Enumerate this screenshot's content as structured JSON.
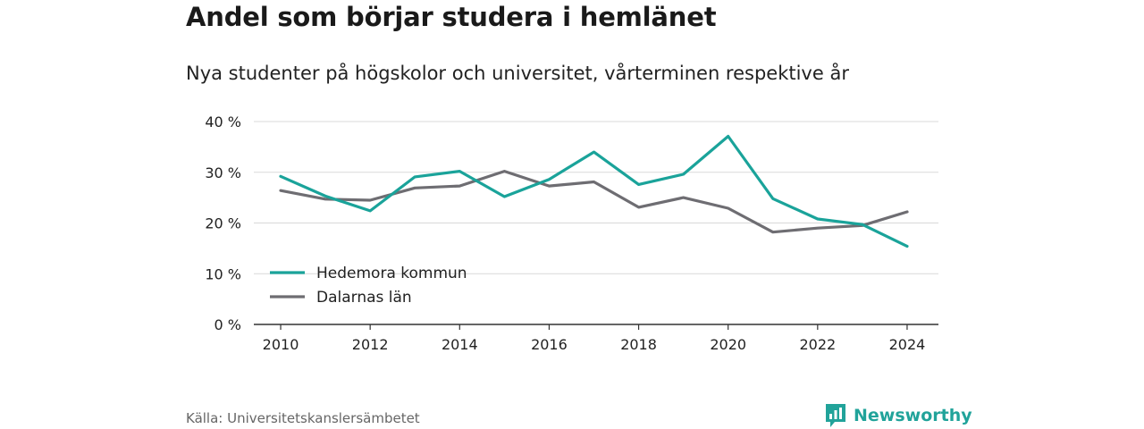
{
  "title": "Andel som börjar studera i hemlänet",
  "subtitle": "Nya studenter på högskolor och universitet, vårterminen respektive år",
  "source": "Källa: Universitetskanslersämbetet",
  "brand": "Newsworthy",
  "colors": {
    "accent": "#1aa39a",
    "secondary": "#6e6d72",
    "grid": "#d9d9d9",
    "axis": "#333333"
  },
  "chart_data": {
    "type": "line",
    "x": [
      2010,
      2011,
      2012,
      2013,
      2014,
      2015,
      2016,
      2017,
      2018,
      2019,
      2020,
      2021,
      2022,
      2023,
      2024
    ],
    "xticks": [
      2010,
      2012,
      2014,
      2016,
      2018,
      2020,
      2022,
      2024
    ],
    "xtick_labels": [
      "2010",
      "2012",
      "2014",
      "2016",
      "2018",
      "2020",
      "2022",
      "2024"
    ],
    "yticks": [
      0,
      10,
      20,
      30,
      40
    ],
    "ytick_labels": [
      "0 %",
      "10 %",
      "20 %",
      "30 %",
      "40 %"
    ],
    "ylim": [
      0,
      40
    ],
    "xlim": [
      2009.4,
      2024.7
    ],
    "grid": true,
    "legend_position": "bottom-left",
    "series": [
      {
        "name": "Hedemora kommun",
        "color": "#1aa39a",
        "values": [
          29.2,
          25.3,
          22.4,
          29.1,
          30.2,
          25.2,
          28.6,
          34.0,
          27.6,
          29.6,
          37.1,
          24.8,
          20.8,
          19.7,
          15.4
        ]
      },
      {
        "name": "Dalarnas län",
        "color": "#6e6d72",
        "values": [
          26.4,
          24.7,
          24.5,
          26.9,
          27.3,
          30.2,
          27.3,
          28.1,
          23.1,
          25.0,
          22.9,
          18.2,
          19.0,
          19.5,
          22.2
        ]
      }
    ]
  }
}
